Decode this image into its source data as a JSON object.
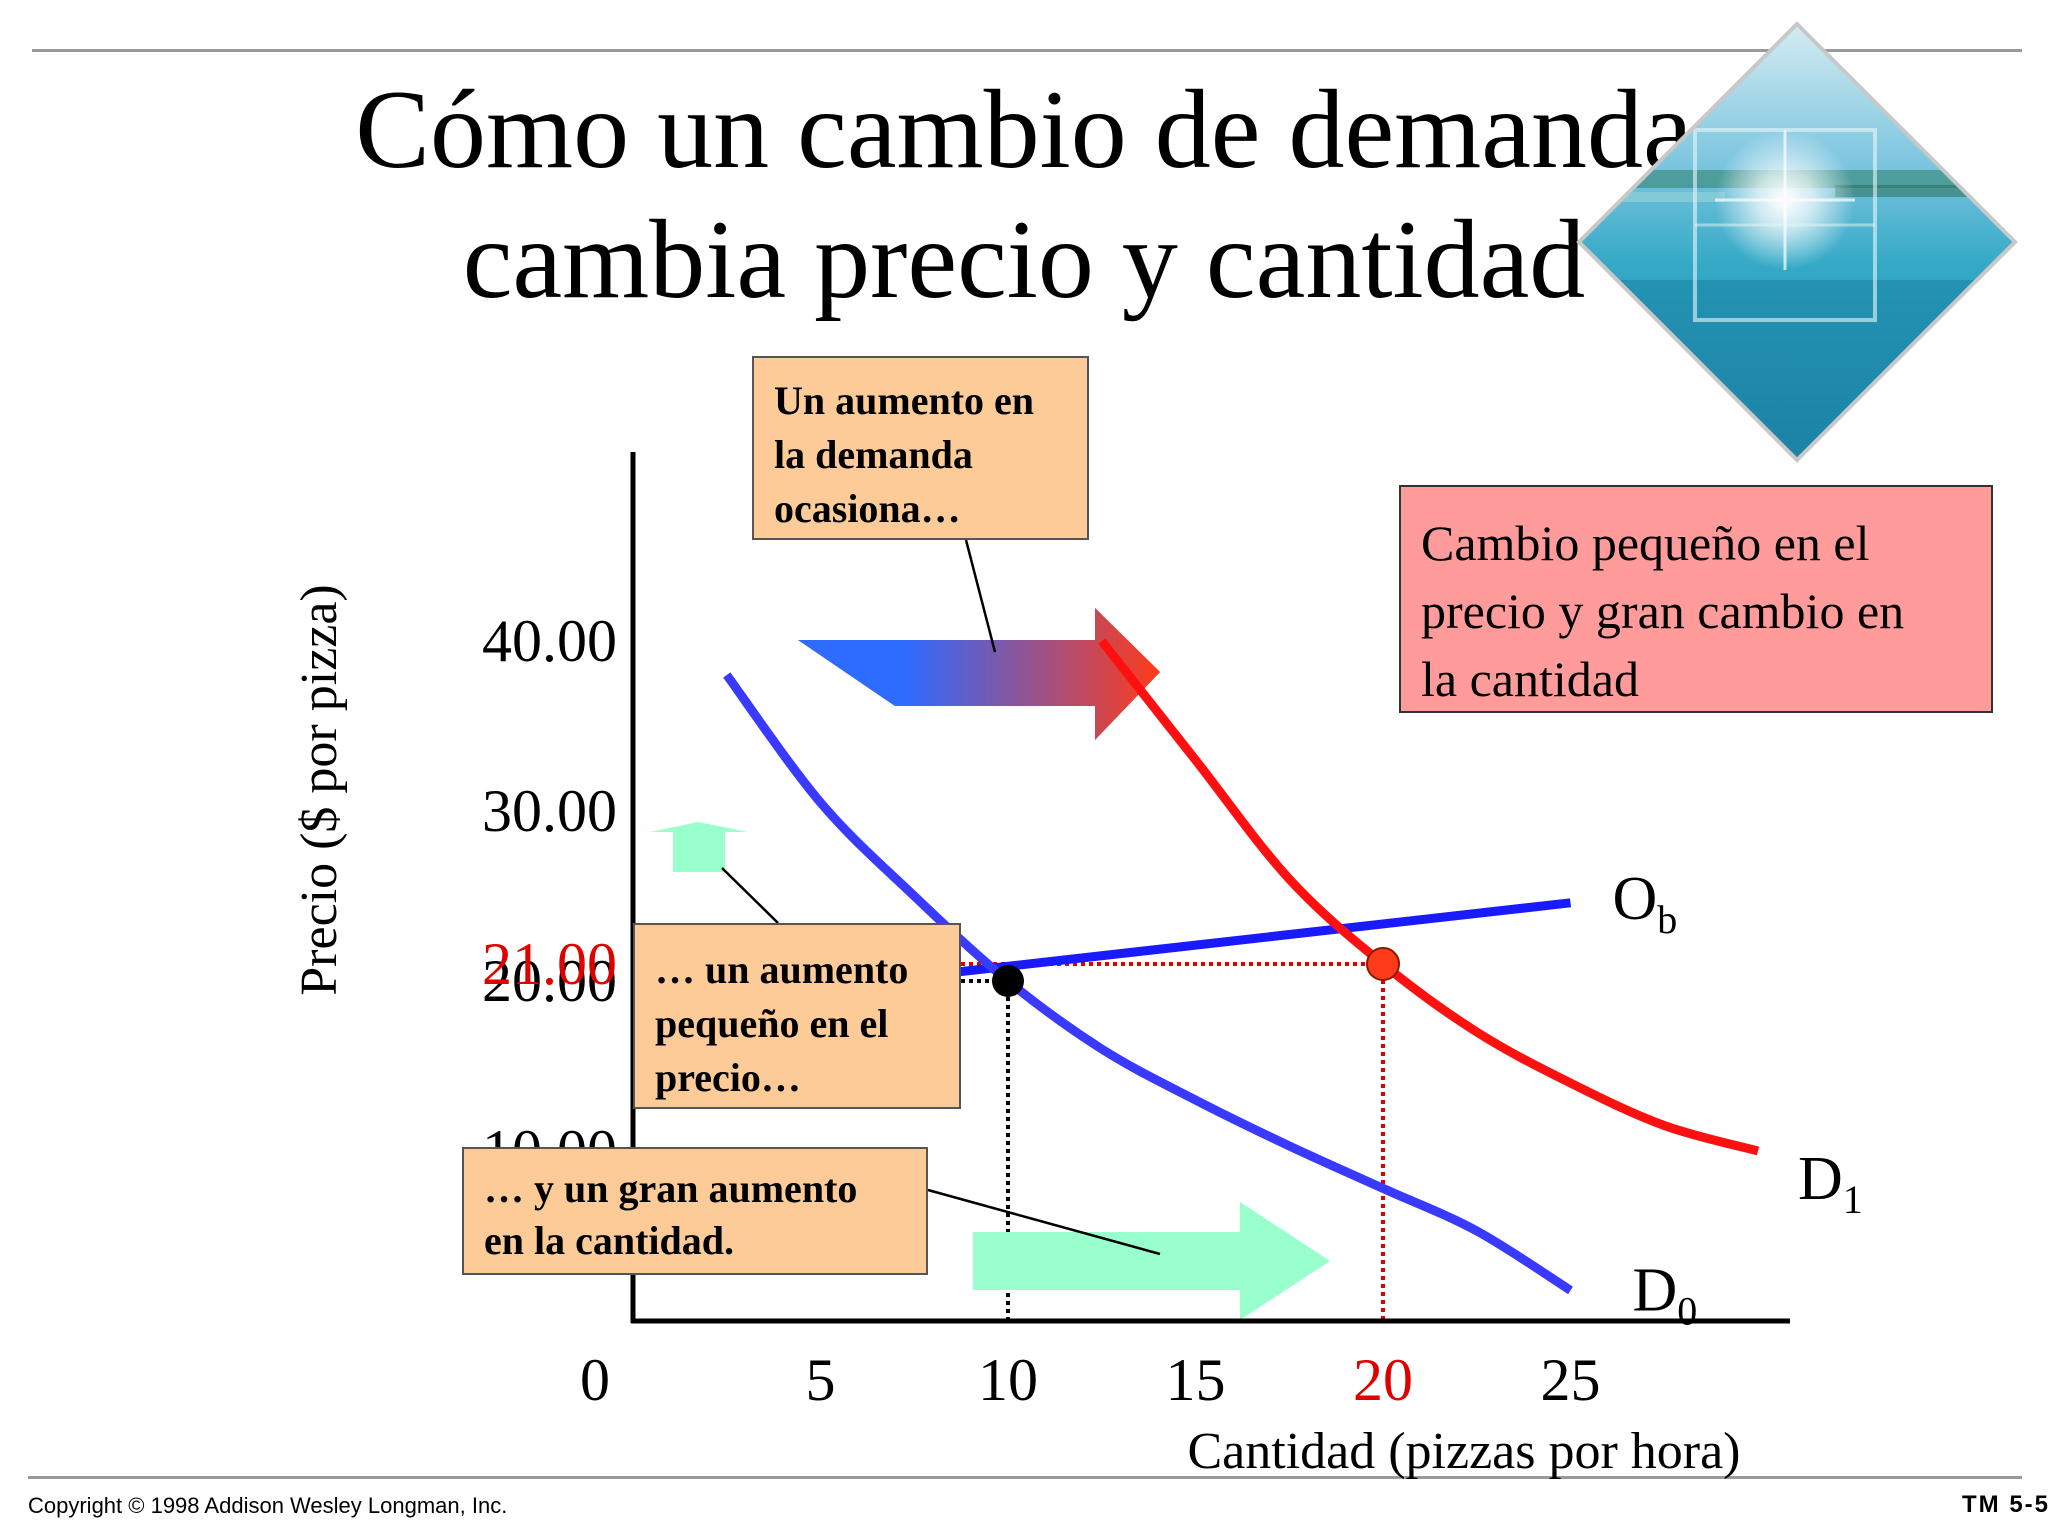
{
  "slide": {
    "title_line1": "Cómo un cambio de demanda",
    "title_line2": "cambia precio y cantidad",
    "copyright": "Copyright © 1998 Addison Wesley Longman, Inc.",
    "slide_number": "TM 5-5"
  },
  "callouts": {
    "demand_increase": [
      "Un aumento en",
      "la demanda",
      "ocasiona…"
    ],
    "price_increase": [
      "… un aumento",
      "pequeño en el",
      "precio…"
    ],
    "quantity_increase": [
      "… y un gran aumento",
      "en la cantidad."
    ],
    "summary": [
      "Cambio pequeño en el",
      "precio y gran cambio en",
      "la cantidad"
    ]
  },
  "colors": {
    "supply": "#1a1aff",
    "demand_initial": "#3a3aff",
    "demand_new": "#ff1010",
    "highlight": "#e00000",
    "callout_orange": "#fccb98",
    "callout_salmon": "#ff9b9b",
    "arrow_green": "#99ffcc"
  },
  "chart_data": {
    "type": "line",
    "xlabel": "Cantidad (pizzas por hora)",
    "ylabel": "Precio ($ por pizza)",
    "x_ticks": [
      "0",
      "5",
      "10",
      "15",
      "20",
      "25"
    ],
    "y_ticks": [
      "10.00",
      "20.00",
      "21.00",
      "30.00",
      "40.00"
    ],
    "xlim": [
      0,
      31
    ],
    "ylim": [
      0,
      41
    ],
    "highlight_ticks": {
      "x": "20",
      "y": "21.00"
    },
    "series": [
      {
        "name": "Ob",
        "label_main": "O",
        "label_sub": "b",
        "x": [
          2.5,
          25
        ],
        "y": [
          19.0,
          24.6
        ]
      },
      {
        "name": "D0",
        "label_main": "D",
        "label_sub": "0",
        "x": [
          2.5,
          5,
          7.5,
          10,
          12.5,
          15,
          17.5,
          20,
          22.5,
          25
        ],
        "y": [
          38.0,
          30.5,
          25.0,
          20.0,
          16.0,
          13.0,
          10.3,
          7.8,
          5.3,
          1.8
        ]
      },
      {
        "name": "D1",
        "label_main": "D",
        "label_sub": "1",
        "x": [
          12.5,
          15,
          17.5,
          20,
          22.5,
          25,
          27.5,
          30
        ],
        "y": [
          40.0,
          33.0,
          26.0,
          21.0,
          17.0,
          14.0,
          11.5,
          10.0
        ]
      }
    ],
    "equilibria": [
      {
        "name": "initial",
        "x": 10,
        "y": 20
      },
      {
        "name": "new",
        "x": 20,
        "y": 21
      }
    ],
    "grid": false,
    "legend": "none"
  }
}
